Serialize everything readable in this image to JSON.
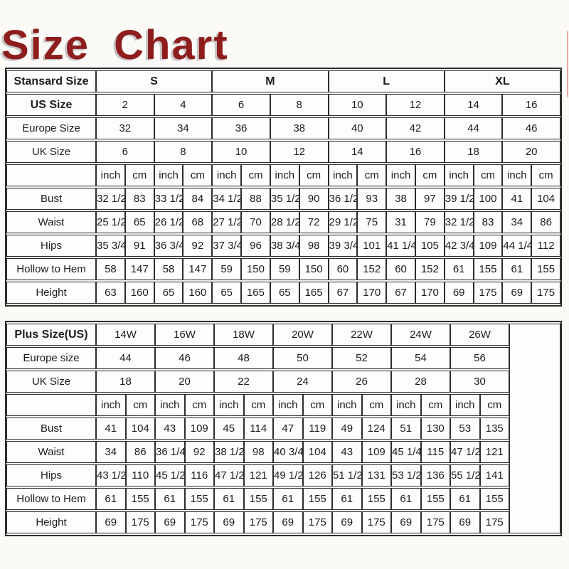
{
  "page": {
    "title": "Size Chart"
  },
  "standard_table": {
    "rows": [
      {
        "label": "Stansard Size",
        "label_bold": true,
        "cells_bold": true,
        "cells": [
          {
            "t": "S",
            "s": 4
          },
          {
            "t": "M",
            "s": 4
          },
          {
            "t": "L",
            "s": 4
          },
          {
            "t": "XL",
            "s": 4
          }
        ]
      },
      {
        "label": "US Size",
        "label_bold": true,
        "cells": [
          {
            "t": "2",
            "s": 2
          },
          {
            "t": "4",
            "s": 2
          },
          {
            "t": "6",
            "s": 2
          },
          {
            "t": "8",
            "s": 2
          },
          {
            "t": "10",
            "s": 2
          },
          {
            "t": "12",
            "s": 2
          },
          {
            "t": "14",
            "s": 2
          },
          {
            "t": "16",
            "s": 2
          }
        ]
      },
      {
        "label": "Europe Size",
        "cells": [
          {
            "t": "32",
            "s": 2
          },
          {
            "t": "34",
            "s": 2
          },
          {
            "t": "36",
            "s": 2
          },
          {
            "t": "38",
            "s": 2
          },
          {
            "t": "40",
            "s": 2
          },
          {
            "t": "42",
            "s": 2
          },
          {
            "t": "44",
            "s": 2
          },
          {
            "t": "46",
            "s": 2
          }
        ]
      },
      {
        "label": "UK Size",
        "cells": [
          {
            "t": "6",
            "s": 2
          },
          {
            "t": "8",
            "s": 2
          },
          {
            "t": "10",
            "s": 2
          },
          {
            "t": "12",
            "s": 2
          },
          {
            "t": "14",
            "s": 2
          },
          {
            "t": "16",
            "s": 2
          },
          {
            "t": "18",
            "s": 2
          },
          {
            "t": "20",
            "s": 2
          }
        ]
      },
      {
        "label": "",
        "cells": [
          {
            "t": "inch"
          },
          {
            "t": "cm"
          },
          {
            "t": "inch"
          },
          {
            "t": "cm"
          },
          {
            "t": "inch"
          },
          {
            "t": "cm"
          },
          {
            "t": "inch"
          },
          {
            "t": "cm"
          },
          {
            "t": "inch"
          },
          {
            "t": "cm"
          },
          {
            "t": "inch"
          },
          {
            "t": "cm"
          },
          {
            "t": "inch"
          },
          {
            "t": "cm"
          },
          {
            "t": "inch"
          },
          {
            "t": "cm"
          }
        ]
      },
      {
        "label": "Bust",
        "cells": [
          {
            "t": "32 1/2"
          },
          {
            "t": "83"
          },
          {
            "t": "33 1/2"
          },
          {
            "t": "84"
          },
          {
            "t": "34 1/2"
          },
          {
            "t": "88"
          },
          {
            "t": "35 1/2"
          },
          {
            "t": "90"
          },
          {
            "t": "36 1/2"
          },
          {
            "t": "93"
          },
          {
            "t": "38"
          },
          {
            "t": "97"
          },
          {
            "t": "39 1/2"
          },
          {
            "t": "100"
          },
          {
            "t": "41"
          },
          {
            "t": "104"
          }
        ]
      },
      {
        "label": "Waist",
        "cells": [
          {
            "t": "25 1/2"
          },
          {
            "t": "65"
          },
          {
            "t": "26 1/2"
          },
          {
            "t": "68"
          },
          {
            "t": "27 1/2"
          },
          {
            "t": "70"
          },
          {
            "t": "28 1/2"
          },
          {
            "t": "72"
          },
          {
            "t": "29 1/2"
          },
          {
            "t": "75"
          },
          {
            "t": "31"
          },
          {
            "t": "79"
          },
          {
            "t": "32 1/2"
          },
          {
            "t": "83"
          },
          {
            "t": "34"
          },
          {
            "t": "86"
          }
        ]
      },
      {
        "label": "Hips",
        "cells": [
          {
            "t": "35 3/4"
          },
          {
            "t": "91"
          },
          {
            "t": "36 3/4"
          },
          {
            "t": "92"
          },
          {
            "t": "37 3/4"
          },
          {
            "t": "96"
          },
          {
            "t": "38 3/4"
          },
          {
            "t": "98"
          },
          {
            "t": "39 3/4"
          },
          {
            "t": "101"
          },
          {
            "t": "41 1/4"
          },
          {
            "t": "105"
          },
          {
            "t": "42 3/4"
          },
          {
            "t": "109"
          },
          {
            "t": "44 1/4"
          },
          {
            "t": "112"
          }
        ]
      },
      {
        "label": "Hollow to Hem",
        "cells": [
          {
            "t": "58"
          },
          {
            "t": "147"
          },
          {
            "t": "58"
          },
          {
            "t": "147"
          },
          {
            "t": "59"
          },
          {
            "t": "150"
          },
          {
            "t": "59"
          },
          {
            "t": "150"
          },
          {
            "t": "60"
          },
          {
            "t": "152"
          },
          {
            "t": "60"
          },
          {
            "t": "152"
          },
          {
            "t": "61"
          },
          {
            "t": "155"
          },
          {
            "t": "61"
          },
          {
            "t": "155"
          }
        ]
      },
      {
        "label": "Height",
        "cells": [
          {
            "t": "63"
          },
          {
            "t": "160"
          },
          {
            "t": "65"
          },
          {
            "t": "160"
          },
          {
            "t": "65"
          },
          {
            "t": "165"
          },
          {
            "t": "65"
          },
          {
            "t": "165"
          },
          {
            "t": "67"
          },
          {
            "t": "170"
          },
          {
            "t": "67"
          },
          {
            "t": "170"
          },
          {
            "t": "69"
          },
          {
            "t": "175"
          },
          {
            "t": "69"
          },
          {
            "t": "175"
          }
        ]
      }
    ]
  },
  "plus_table": {
    "rows": [
      {
        "label": "Plus Size(US)",
        "label_bold": true,
        "cells": [
          {
            "t": "14W",
            "s": 2
          },
          {
            "t": "16W",
            "s": 2
          },
          {
            "t": "18W",
            "s": 2
          },
          {
            "t": "20W",
            "s": 2
          },
          {
            "t": "22W",
            "s": 2
          },
          {
            "t": "24W",
            "s": 2
          },
          {
            "t": "26W",
            "s": 2
          },
          {
            "t": "",
            "r": 9,
            "filler": true
          }
        ]
      },
      {
        "label": "Europe size",
        "cells": [
          {
            "t": "44",
            "s": 2
          },
          {
            "t": "46",
            "s": 2
          },
          {
            "t": "48",
            "s": 2
          },
          {
            "t": "50",
            "s": 2
          },
          {
            "t": "52",
            "s": 2
          },
          {
            "t": "54",
            "s": 2
          },
          {
            "t": "56",
            "s": 2
          }
        ]
      },
      {
        "label": "UK Size",
        "cells": [
          {
            "t": "18",
            "s": 2
          },
          {
            "t": "20",
            "s": 2
          },
          {
            "t": "22",
            "s": 2
          },
          {
            "t": "24",
            "s": 2
          },
          {
            "t": "26",
            "s": 2
          },
          {
            "t": "28",
            "s": 2
          },
          {
            "t": "30",
            "s": 2
          }
        ]
      },
      {
        "label": "",
        "cells": [
          {
            "t": "inch"
          },
          {
            "t": "cm"
          },
          {
            "t": "inch"
          },
          {
            "t": "cm"
          },
          {
            "t": "inch"
          },
          {
            "t": "cm"
          },
          {
            "t": "inch"
          },
          {
            "t": "cm"
          },
          {
            "t": "inch"
          },
          {
            "t": "cm"
          },
          {
            "t": "inch"
          },
          {
            "t": "cm"
          },
          {
            "t": "inch"
          },
          {
            "t": "cm"
          }
        ]
      },
      {
        "label": "Bust",
        "cells": [
          {
            "t": "41"
          },
          {
            "t": "104"
          },
          {
            "t": "43"
          },
          {
            "t": "109"
          },
          {
            "t": "45"
          },
          {
            "t": "114"
          },
          {
            "t": "47"
          },
          {
            "t": "119"
          },
          {
            "t": "49"
          },
          {
            "t": "124"
          },
          {
            "t": "51"
          },
          {
            "t": "130"
          },
          {
            "t": "53"
          },
          {
            "t": "135"
          }
        ]
      },
      {
        "label": "Waist",
        "cells": [
          {
            "t": "34"
          },
          {
            "t": "86"
          },
          {
            "t": "36 1/4"
          },
          {
            "t": "92"
          },
          {
            "t": "38 1/2"
          },
          {
            "t": "98"
          },
          {
            "t": "40 3/4"
          },
          {
            "t": "104"
          },
          {
            "t": "43"
          },
          {
            "t": "109"
          },
          {
            "t": "45 1/4"
          },
          {
            "t": "115"
          },
          {
            "t": "47 1/2"
          },
          {
            "t": "121"
          }
        ]
      },
      {
        "label": "Hips",
        "cells": [
          {
            "t": "43 1/2"
          },
          {
            "t": "110"
          },
          {
            "t": "45 1/2"
          },
          {
            "t": "116"
          },
          {
            "t": "47 1/2"
          },
          {
            "t": "121"
          },
          {
            "t": "49 1/2"
          },
          {
            "t": "126"
          },
          {
            "t": "51 1/2"
          },
          {
            "t": "131"
          },
          {
            "t": "53 1/2"
          },
          {
            "t": "136"
          },
          {
            "t": "55 1/2"
          },
          {
            "t": "141"
          }
        ]
      },
      {
        "label": "Hollow to Hem",
        "cells": [
          {
            "t": "61"
          },
          {
            "t": "155"
          },
          {
            "t": "61"
          },
          {
            "t": "155"
          },
          {
            "t": "61"
          },
          {
            "t": "155"
          },
          {
            "t": "61"
          },
          {
            "t": "155"
          },
          {
            "t": "61"
          },
          {
            "t": "155"
          },
          {
            "t": "61"
          },
          {
            "t": "155"
          },
          {
            "t": "61"
          },
          {
            "t": "155"
          }
        ]
      },
      {
        "label": "Height",
        "cells": [
          {
            "t": "69"
          },
          {
            "t": "175"
          },
          {
            "t": "69"
          },
          {
            "t": "175"
          },
          {
            "t": "69"
          },
          {
            "t": "175"
          },
          {
            "t": "69"
          },
          {
            "t": "175"
          },
          {
            "t": "69"
          },
          {
            "t": "175"
          },
          {
            "t": "69"
          },
          {
            "t": "175"
          },
          {
            "t": "69"
          },
          {
            "t": "175"
          }
        ]
      }
    ]
  },
  "colors": {
    "title": "#8f1d1d",
    "title_shadow": "#c6c6c6",
    "border": "#2d2d2d",
    "cell_background": "#fdfdfb",
    "page_background": "#fbfaf7",
    "edge_artifact": "#eda89d"
  }
}
